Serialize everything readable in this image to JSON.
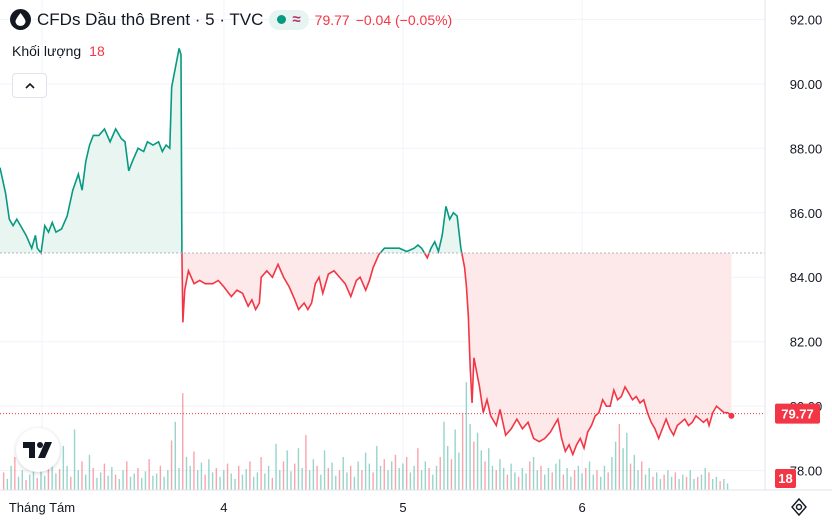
{
  "header": {
    "title": "CFDs Dầu thô Brent · 5 · TVC",
    "last": "79.77",
    "change": "−0.04 (−0.05%)",
    "status_icon": "market-open-dot-icon",
    "session_icon": "wave-icon"
  },
  "volume_legend": {
    "label": "Khối lượng",
    "value": "18"
  },
  "colors": {
    "up": "#089981",
    "down": "#f23645",
    "up_fill": "#e8f5f1",
    "down_fill": "#fde8ea"
  },
  "chart_data": {
    "type": "line",
    "baseline": 84.75,
    "ylim": [
      77.4,
      92.6
    ],
    "y_ticks": [
      "92.00",
      "90.00",
      "88.00",
      "86.00",
      "84.00",
      "82.00",
      "80.00",
      "78.00"
    ],
    "y_tick_values": [
      92,
      90,
      88,
      86,
      84,
      82,
      80,
      78
    ],
    "x_ticks": [
      {
        "label": "Tháng Tám",
        "x": 22.5
      },
      {
        "label": "4",
        "x": 120
      },
      {
        "label": "5",
        "x": 216
      },
      {
        "label": "6",
        "x": 312
      }
    ],
    "xlim": [
      0,
      410
    ],
    "last_price_label": "79.77",
    "last_price": 79.77,
    "volume_label": "18",
    "price_series": [
      [
        0,
        87.4
      ],
      [
        3,
        86.6
      ],
      [
        5,
        85.8
      ],
      [
        7,
        85.6
      ],
      [
        9,
        85.8
      ],
      [
        11,
        85.6
      ],
      [
        14,
        85.3
      ],
      [
        17,
        84.9
      ],
      [
        19,
        85.3
      ],
      [
        20,
        84.9
      ],
      [
        22,
        84.75
      ],
      [
        24,
        85.6
      ],
      [
        26,
        85.4
      ],
      [
        28,
        85.7
      ],
      [
        30,
        85.4
      ],
      [
        33,
        85.5
      ],
      [
        36,
        85.9
      ],
      [
        39,
        86.7
      ],
      [
        42,
        87.2
      ],
      [
        44,
        86.7
      ],
      [
        46,
        87.6
      ],
      [
        48,
        88.1
      ],
      [
        50,
        88.4
      ],
      [
        53,
        88.4
      ],
      [
        56,
        88.6
      ],
      [
        59,
        88.2
      ],
      [
        62,
        88.6
      ],
      [
        65,
        88.3
      ],
      [
        67,
        88.2
      ],
      [
        69,
        87.3
      ],
      [
        71,
        87.6
      ],
      [
        74,
        88.0
      ],
      [
        77,
        87.9
      ],
      [
        79,
        88.2
      ],
      [
        82,
        88.1
      ],
      [
        85,
        88.2
      ],
      [
        87,
        87.9
      ],
      [
        89,
        88.1
      ],
      [
        91,
        88.0
      ],
      [
        92,
        89.9
      ],
      [
        94,
        90.5
      ],
      [
        96,
        91.1
      ],
      [
        97,
        90.9
      ],
      [
        97.5,
        84.75
      ],
      [
        98,
        82.6
      ],
      [
        99,
        83.6
      ],
      [
        101,
        84.2
      ],
      [
        104,
        83.8
      ],
      [
        107,
        83.9
      ],
      [
        110,
        83.8
      ],
      [
        114,
        83.8
      ],
      [
        117,
        83.9
      ],
      [
        120,
        83.7
      ],
      [
        124,
        83.4
      ],
      [
        127,
        83.6
      ],
      [
        130,
        83.5
      ],
      [
        133,
        83.1
      ],
      [
        135,
        83.3
      ],
      [
        137,
        83.0
      ],
      [
        139,
        83.2
      ],
      [
        140,
        84.0
      ],
      [
        143,
        84.2
      ],
      [
        146,
        84.0
      ],
      [
        149,
        84.4
      ],
      [
        152,
        84.0
      ],
      [
        155,
        83.7
      ],
      [
        158,
        83.3
      ],
      [
        160,
        83.0
      ],
      [
        163,
        83.2
      ],
      [
        165,
        83.0
      ],
      [
        167,
        83.2
      ],
      [
        169,
        83.8
      ],
      [
        171,
        84.0
      ],
      [
        173,
        83.5
      ],
      [
        176,
        84.1
      ],
      [
        179,
        84.2
      ],
      [
        182,
        84.0
      ],
      [
        185,
        83.8
      ],
      [
        188,
        83.4
      ],
      [
        191,
        83.9
      ],
      [
        193,
        84.0
      ],
      [
        196,
        83.6
      ],
      [
        198,
        83.9
      ],
      [
        200,
        84.3
      ],
      [
        203,
        84.7
      ],
      [
        206,
        84.9
      ],
      [
        210,
        84.9
      ],
      [
        214,
        84.9
      ],
      [
        218,
        84.8
      ],
      [
        222,
        84.9
      ],
      [
        224,
        85.0
      ],
      [
        226,
        84.9
      ],
      [
        229,
        84.6
      ],
      [
        231,
        84.9
      ],
      [
        233,
        85.1
      ],
      [
        235,
        84.8
      ],
      [
        237,
        85.3
      ],
      [
        239,
        86.2
      ],
      [
        241,
        85.8
      ],
      [
        243,
        86.0
      ],
      [
        245,
        85.9
      ],
      [
        247,
        84.9
      ],
      [
        249,
        84.3
      ],
      [
        250,
        83.7
      ],
      [
        251,
        82.8
      ],
      [
        252,
        81.2
      ],
      [
        253,
        80.1
      ],
      [
        254,
        81.5
      ],
      [
        255,
        81.2
      ],
      [
        257,
        80.6
      ],
      [
        259,
        79.8
      ],
      [
        261,
        80.2
      ],
      [
        263,
        79.7
      ],
      [
        266,
        79.4
      ],
      [
        268,
        79.9
      ],
      [
        271,
        79.1
      ],
      [
        274,
        79.3
      ],
      [
        277,
        79.6
      ],
      [
        280,
        79.3
      ],
      [
        283,
        79.5
      ],
      [
        286,
        79.0
      ],
      [
        289,
        78.9
      ],
      [
        292,
        79.0
      ],
      [
        295,
        79.2
      ],
      [
        297,
        79.4
      ],
      [
        299,
        79.6
      ],
      [
        301,
        79.0
      ],
      [
        303,
        78.6
      ],
      [
        305,
        78.8
      ],
      [
        307,
        78.5
      ],
      [
        309,
        78.8
      ],
      [
        311,
        79.0
      ],
      [
        313,
        78.7
      ],
      [
        315,
        79.2
      ],
      [
        317,
        79.4
      ],
      [
        319,
        79.7
      ],
      [
        321,
        79.8
      ],
      [
        323,
        80.2
      ],
      [
        325,
        80.0
      ],
      [
        327,
        80.0
      ],
      [
        329,
        80.5
      ],
      [
        331,
        80.2
      ],
      [
        333,
        80.3
      ],
      [
        335,
        80.6
      ],
      [
        337,
        80.4
      ],
      [
        339,
        80.2
      ],
      [
        341,
        80.3
      ],
      [
        343,
        80.1
      ],
      [
        345,
        80.2
      ],
      [
        347,
        79.8
      ],
      [
        349,
        79.5
      ],
      [
        351,
        79.3
      ],
      [
        353,
        79.0
      ],
      [
        355,
        79.3
      ],
      [
        357,
        79.6
      ],
      [
        359,
        79.3
      ],
      [
        361,
        79.1
      ],
      [
        363,
        79.4
      ],
      [
        365,
        79.5
      ],
      [
        367,
        79.6
      ],
      [
        369,
        79.4
      ],
      [
        371,
        79.5
      ],
      [
        373,
        79.7
      ],
      [
        375,
        79.6
      ],
      [
        377,
        79.5
      ],
      [
        379,
        79.6
      ],
      [
        380,
        79.4
      ],
      [
        382,
        79.8
      ],
      [
        384,
        80.0
      ],
      [
        386,
        79.9
      ],
      [
        388,
        79.8
      ],
      [
        390,
        79.8
      ],
      [
        392,
        79.7
      ]
    ],
    "volume_series": [
      [
        2,
        16
      ],
      [
        4,
        10
      ],
      [
        6,
        22
      ],
      [
        8,
        30
      ],
      [
        10,
        12
      ],
      [
        12,
        18
      ],
      [
        14,
        9
      ],
      [
        16,
        14
      ],
      [
        18,
        25
      ],
      [
        20,
        11
      ],
      [
        22,
        17
      ],
      [
        24,
        13
      ],
      [
        26,
        20
      ],
      [
        28,
        28
      ],
      [
        30,
        15
      ],
      [
        32,
        19
      ],
      [
        34,
        40
      ],
      [
        36,
        22
      ],
      [
        38,
        12
      ],
      [
        40,
        55
      ],
      [
        42,
        18
      ],
      [
        44,
        26
      ],
      [
        46,
        14
      ],
      [
        48,
        32
      ],
      [
        50,
        20
      ],
      [
        52,
        11
      ],
      [
        54,
        16
      ],
      [
        56,
        24
      ],
      [
        58,
        13
      ],
      [
        60,
        21
      ],
      [
        62,
        14
      ],
      [
        64,
        10
      ],
      [
        66,
        18
      ],
      [
        68,
        26
      ],
      [
        70,
        12
      ],
      [
        72,
        15
      ],
      [
        74,
        20
      ],
      [
        76,
        11
      ],
      [
        78,
        17
      ],
      [
        80,
        28
      ],
      [
        82,
        13
      ],
      [
        84,
        15
      ],
      [
        86,
        22
      ],
      [
        88,
        12
      ],
      [
        90,
        18
      ],
      [
        92,
        45
      ],
      [
        94,
        62
      ],
      [
        96,
        20
      ],
      [
        98,
        88
      ],
      [
        100,
        30
      ],
      [
        102,
        22
      ],
      [
        104,
        35
      ],
      [
        106,
        18
      ],
      [
        108,
        25
      ],
      [
        110,
        14
      ],
      [
        112,
        28
      ],
      [
        114,
        16
      ],
      [
        116,
        20
      ],
      [
        118,
        12
      ],
      [
        120,
        18
      ],
      [
        122,
        24
      ],
      [
        124,
        15
      ],
      [
        126,
        10
      ],
      [
        128,
        22
      ],
      [
        130,
        14
      ],
      [
        132,
        19
      ],
      [
        134,
        26
      ],
      [
        136,
        12
      ],
      [
        138,
        16
      ],
      [
        140,
        30
      ],
      [
        142,
        15
      ],
      [
        144,
        22
      ],
      [
        146,
        11
      ],
      [
        148,
        42
      ],
      [
        150,
        18
      ],
      [
        152,
        26
      ],
      [
        154,
        36
      ],
      [
        156,
        17
      ],
      [
        158,
        24
      ],
      [
        160,
        38
      ],
      [
        162,
        20
      ],
      [
        164,
        50
      ],
      [
        166,
        18
      ],
      [
        168,
        28
      ],
      [
        170,
        22
      ],
      [
        172,
        14
      ],
      [
        174,
        36
      ],
      [
        176,
        20
      ],
      [
        178,
        25
      ],
      [
        180,
        13
      ],
      [
        182,
        18
      ],
      [
        184,
        30
      ],
      [
        186,
        16
      ],
      [
        188,
        22
      ],
      [
        190,
        12
      ],
      [
        192,
        26
      ],
      [
        194,
        18
      ],
      [
        196,
        34
      ],
      [
        198,
        24
      ],
      [
        200,
        16
      ],
      [
        202,
        40
      ],
      [
        204,
        22
      ],
      [
        206,
        28
      ],
      [
        208,
        18
      ],
      [
        210,
        26
      ],
      [
        212,
        32
      ],
      [
        214,
        20
      ],
      [
        216,
        24
      ],
      [
        218,
        30
      ],
      [
        220,
        16
      ],
      [
        222,
        22
      ],
      [
        224,
        38
      ],
      [
        226,
        18
      ],
      [
        228,
        26
      ],
      [
        230,
        20
      ],
      [
        232,
        14
      ],
      [
        234,
        22
      ],
      [
        236,
        30
      ],
      [
        238,
        62
      ],
      [
        240,
        40
      ],
      [
        242,
        28
      ],
      [
        244,
        55
      ],
      [
        246,
        34
      ],
      [
        248,
        70
      ],
      [
        250,
        98
      ],
      [
        252,
        60
      ],
      [
        254,
        44
      ],
      [
        256,
        52
      ],
      [
        258,
        36
      ],
      [
        260,
        26
      ],
      [
        262,
        38
      ],
      [
        264,
        22
      ],
      [
        266,
        18
      ],
      [
        268,
        28
      ],
      [
        270,
        20
      ],
      [
        272,
        14
      ],
      [
        274,
        24
      ],
      [
        276,
        16
      ],
      [
        278,
        12
      ],
      [
        280,
        20
      ],
      [
        282,
        15
      ],
      [
        284,
        26
      ],
      [
        286,
        30
      ],
      [
        288,
        18
      ],
      [
        290,
        22
      ],
      [
        292,
        14
      ],
      [
        294,
        20
      ],
      [
        296,
        16
      ],
      [
        298,
        24
      ],
      [
        300,
        28
      ],
      [
        302,
        14
      ],
      [
        304,
        20
      ],
      [
        306,
        12
      ],
      [
        308,
        18
      ],
      [
        310,
        22
      ],
      [
        312,
        15
      ],
      [
        314,
        20
      ],
      [
        316,
        26
      ],
      [
        318,
        14
      ],
      [
        320,
        18
      ],
      [
        322,
        12
      ],
      [
        324,
        22
      ],
      [
        326,
        16
      ],
      [
        328,
        30
      ],
      [
        330,
        44
      ],
      [
        332,
        60
      ],
      [
        334,
        38
      ],
      [
        336,
        52
      ],
      [
        338,
        24
      ],
      [
        340,
        32
      ],
      [
        342,
        18
      ],
      [
        344,
        26
      ],
      [
        346,
        14
      ],
      [
        348,
        20
      ],
      [
        350,
        12
      ],
      [
        352,
        16
      ],
      [
        354,
        10
      ],
      [
        356,
        14
      ],
      [
        358,
        18
      ],
      [
        360,
        12
      ],
      [
        362,
        16
      ],
      [
        364,
        10
      ],
      [
        366,
        14
      ],
      [
        368,
        12
      ],
      [
        370,
        18
      ],
      [
        372,
        10
      ],
      [
        374,
        12
      ],
      [
        376,
        14
      ],
      [
        378,
        20
      ],
      [
        380,
        16
      ],
      [
        382,
        10
      ],
      [
        384,
        12
      ],
      [
        386,
        8
      ],
      [
        388,
        10
      ],
      [
        390,
        6
      ]
    ]
  }
}
